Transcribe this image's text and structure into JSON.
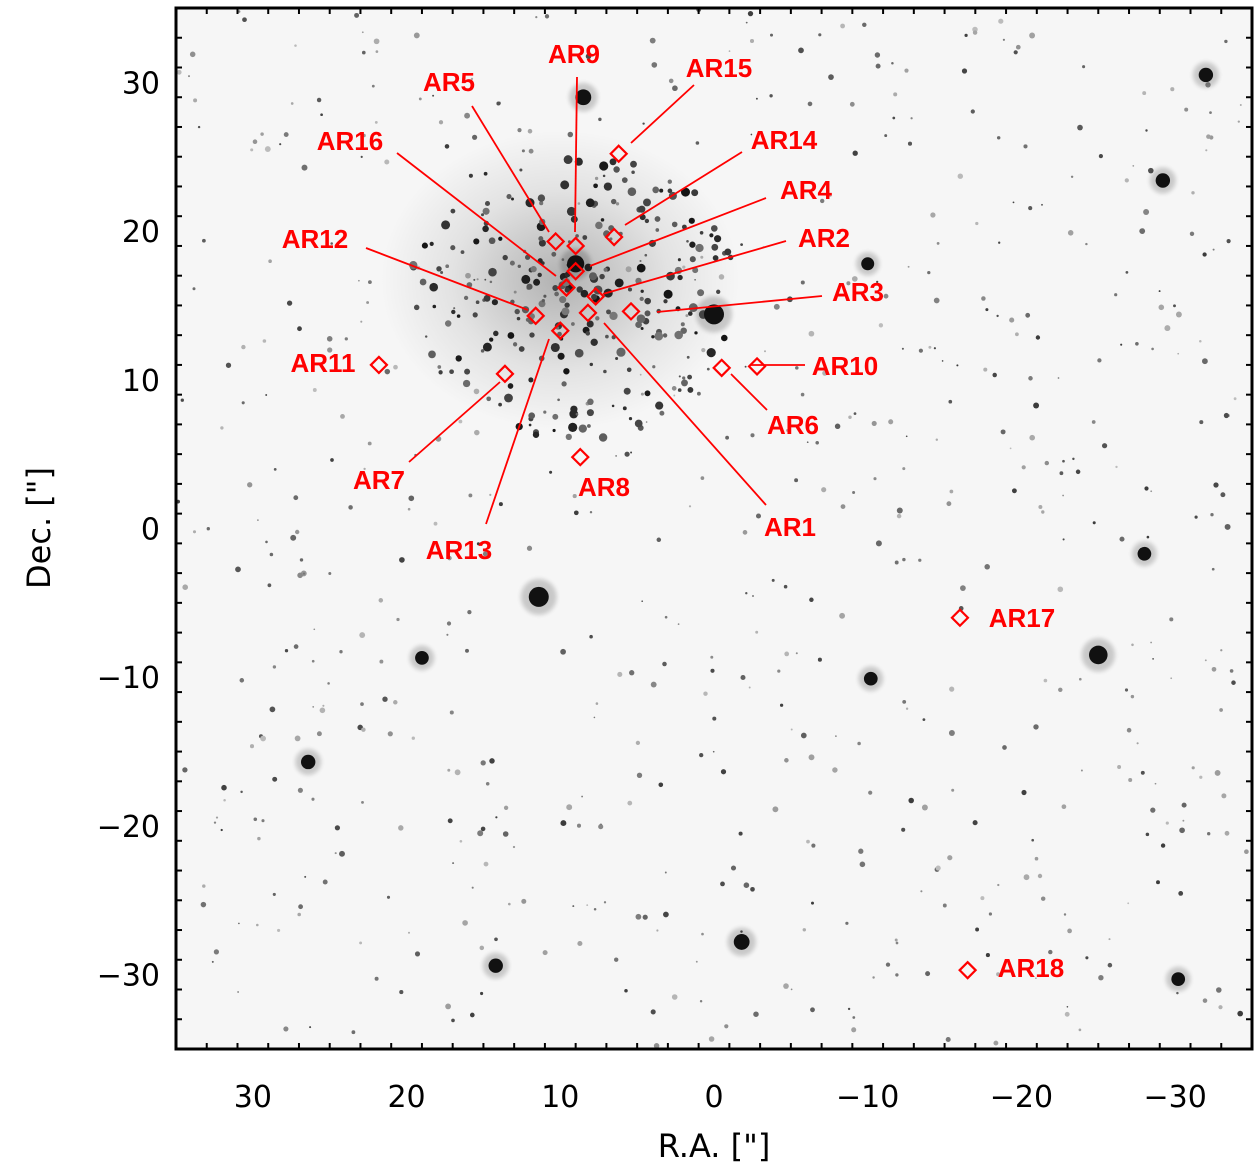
{
  "chart_data": {
    "type": "scatter",
    "title": "",
    "xlabel": "R.A. [\"]",
    "ylabel": "Dec. [\"]",
    "xlim": [
      35,
      -35
    ],
    "ylim": [
      -35,
      35
    ],
    "x_ticks": [
      30,
      20,
      10,
      0,
      -10,
      -20,
      -30
    ],
    "y_ticks": [
      30,
      20,
      10,
      0,
      -10,
      -20,
      -30
    ],
    "x_tick_labels": [
      "30",
      "20",
      "10",
      "0",
      "−10",
      "−20",
      "−30"
    ],
    "y_tick_labels": [
      "30",
      "20",
      "10",
      "0",
      "−10",
      "−20",
      "−30"
    ],
    "background": "grayscale stellar field (inverted)",
    "marker_color": "#ff0000",
    "marker_shape": "diamond",
    "series": [
      {
        "name": "",
        "points": [
          {
            "label": "AR1",
            "x": 8.2,
            "y": 14.5
          },
          {
            "label": "AR2",
            "x": 7.7,
            "y": 15.6
          },
          {
            "label": "AR3",
            "x": 5.4,
            "y": 14.6
          },
          {
            "label": "AR4",
            "x": 9.0,
            "y": 17.3
          },
          {
            "label": "AR5",
            "x": 10.3,
            "y": 19.3
          },
          {
            "label": "AR6",
            "x": -0.5,
            "y": 10.8
          },
          {
            "label": "AR7",
            "x": 13.6,
            "y": 10.4
          },
          {
            "label": "AR8",
            "x": 8.7,
            "y": 4.8
          },
          {
            "label": "AR9",
            "x": 9.0,
            "y": 19.0
          },
          {
            "label": "AR10",
            "x": -2.8,
            "y": 10.9
          },
          {
            "label": "AR11",
            "x": 21.8,
            "y": 11.0
          },
          {
            "label": "AR12",
            "x": 11.6,
            "y": 14.3
          },
          {
            "label": "AR13",
            "x": 10.0,
            "y": 13.3
          },
          {
            "label": "AR14",
            "x": 6.5,
            "y": 19.6
          },
          {
            "label": "AR15",
            "x": 6.2,
            "y": 25.2
          },
          {
            "label": "AR16",
            "x": 9.6,
            "y": 16.2
          },
          {
            "label": "AR17",
            "x": -16.0,
            "y": -6.0
          },
          {
            "label": "AR18",
            "x": -16.5,
            "y": -29.7
          }
        ]
      }
    ],
    "bright_stars": [
      {
        "x": 0.0,
        "y": 14.4,
        "mag": 1.0
      },
      {
        "x": 11.4,
        "y": -4.6,
        "mag": 1.0
      },
      {
        "x": -25.0,
        "y": -8.5,
        "mag": 0.9
      },
      {
        "x": 9.0,
        "y": 17.8,
        "mag": 0.8
      },
      {
        "x": 8.5,
        "y": 29.0,
        "mag": 0.7
      },
      {
        "x": -1.8,
        "y": -27.8,
        "mag": 0.7
      },
      {
        "x": 14.2,
        "y": -29.4,
        "mag": 0.6
      },
      {
        "x": -32.0,
        "y": 30.5,
        "mag": 0.6
      },
      {
        "x": -29.2,
        "y": 23.4,
        "mag": 0.6
      },
      {
        "x": 26.4,
        "y": -15.7,
        "mag": 0.6
      },
      {
        "x": -10.2,
        "y": -10.1,
        "mag": 0.55
      },
      {
        "x": 19.0,
        "y": -8.7,
        "mag": 0.55
      },
      {
        "x": -28.0,
        "y": -1.7,
        "mag": 0.55
      },
      {
        "x": -30.2,
        "y": -30.3,
        "mag": 0.55
      },
      {
        "x": -10.0,
        "y": 17.8,
        "mag": 0.5
      }
    ],
    "grid": false,
    "legend": "none"
  }
}
